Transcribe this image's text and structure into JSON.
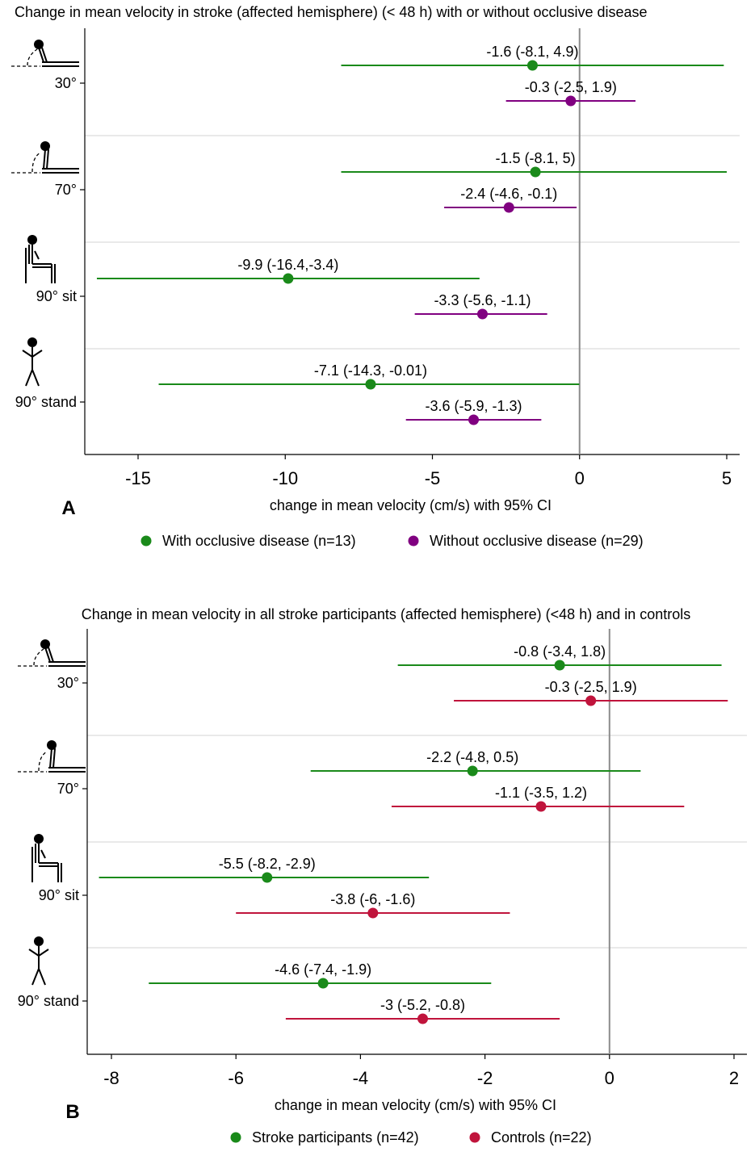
{
  "chart_data": [
    {
      "type": "forest",
      "panel_label": "A",
      "title": "Change in mean velocity in stroke (affected hemisphere) (< 48 h) with or without occlusive disease",
      "xlabel": "change in mean velocity (cm/s) with 95% CI",
      "xlim": [
        -16.5,
        5.4
      ],
      "xticks": [
        -15,
        -10,
        -5,
        0,
        5
      ],
      "reference_line": 0,
      "categories": [
        "30°",
        "70°",
        "90° sit",
        "90° stand"
      ],
      "category_icons": [
        "reclined-30-icon",
        "reclined-70-icon",
        "sitting-icon",
        "standing-icon"
      ],
      "series": [
        {
          "name": "With occlusive disease (n=13)",
          "color": "#1a8a1a",
          "points": [
            {
              "estimate": -1.6,
              "lower": -8.1,
              "upper": 4.9,
              "label": "-1.6 (-8.1, 4.9)"
            },
            {
              "estimate": -1.5,
              "lower": -8.1,
              "upper": 5,
              "label": "-1.5 (-8.1, 5)"
            },
            {
              "estimate": -9.9,
              "lower": -16.4,
              "upper": -3.4,
              "label": "-9.9 (-16.4,-3.4)"
            },
            {
              "estimate": -7.1,
              "lower": -14.3,
              "upper": -0.01,
              "label": "-7.1 (-14.3, -0.01)"
            }
          ]
        },
        {
          "name": "Without occlusive disease (n=29)",
          "color": "#800080",
          "points": [
            {
              "estimate": -0.3,
              "lower": -2.5,
              "upper": 1.9,
              "label": "-0.3 (-2.5, 1.9)"
            },
            {
              "estimate": -2.4,
              "lower": -4.6,
              "upper": -0.1,
              "label": "-2.4 (-4.6, -0.1)"
            },
            {
              "estimate": -3.3,
              "lower": -5.6,
              "upper": -1.1,
              "label": "-3.3 (-5.6, -1.1)"
            },
            {
              "estimate": -3.6,
              "lower": -5.9,
              "upper": -1.3,
              "label": "-3.6 (-5.9, -1.3)"
            }
          ]
        }
      ]
    },
    {
      "type": "forest",
      "panel_label": "B",
      "title": "Change in mean velocity in all stroke participants (affected hemisphere) (<48 h) and in controls",
      "xlabel": "change in mean velocity (cm/s) with 95% CI",
      "xlim": [
        -8.4,
        2.2
      ],
      "xticks": [
        -8,
        -6,
        -4,
        -2,
        0,
        2
      ],
      "reference_line": 0,
      "categories": [
        "30°",
        "70°",
        "90° sit",
        "90° stand"
      ],
      "category_icons": [
        "reclined-30-icon",
        "reclined-70-icon",
        "sitting-icon",
        "standing-icon"
      ],
      "series": [
        {
          "name": "Stroke participants (n=42)",
          "color": "#1a8a1a",
          "points": [
            {
              "estimate": -0.8,
              "lower": -3.4,
              "upper": 1.8,
              "label": "-0.8 (-3.4, 1.8)"
            },
            {
              "estimate": -2.2,
              "lower": -4.8,
              "upper": 0.5,
              "label": "-2.2 (-4.8, 0.5)"
            },
            {
              "estimate": -5.5,
              "lower": -8.2,
              "upper": -2.9,
              "label": "-5.5 (-8.2, -2.9)"
            },
            {
              "estimate": -4.6,
              "lower": -7.4,
              "upper": -1.9,
              "label": "-4.6 (-7.4, -1.9)"
            }
          ]
        },
        {
          "name": "Controls (n=22)",
          "color": "#c0143c",
          "points": [
            {
              "estimate": -0.3,
              "lower": -2.5,
              "upper": 1.9,
              "label": "-0.3 (-2.5, 1.9)"
            },
            {
              "estimate": -1.1,
              "lower": -3.5,
              "upper": 1.2,
              "label": "-1.1 (-3.5, 1.2)"
            },
            {
              "estimate": -3.8,
              "lower": -6,
              "upper": -1.6,
              "label": "-3.8 (-6, -1.6)"
            },
            {
              "estimate": -3,
              "lower": -5.2,
              "upper": -0.8,
              "label": "-3 (-5.2, -0.8)"
            }
          ]
        }
      ]
    }
  ]
}
